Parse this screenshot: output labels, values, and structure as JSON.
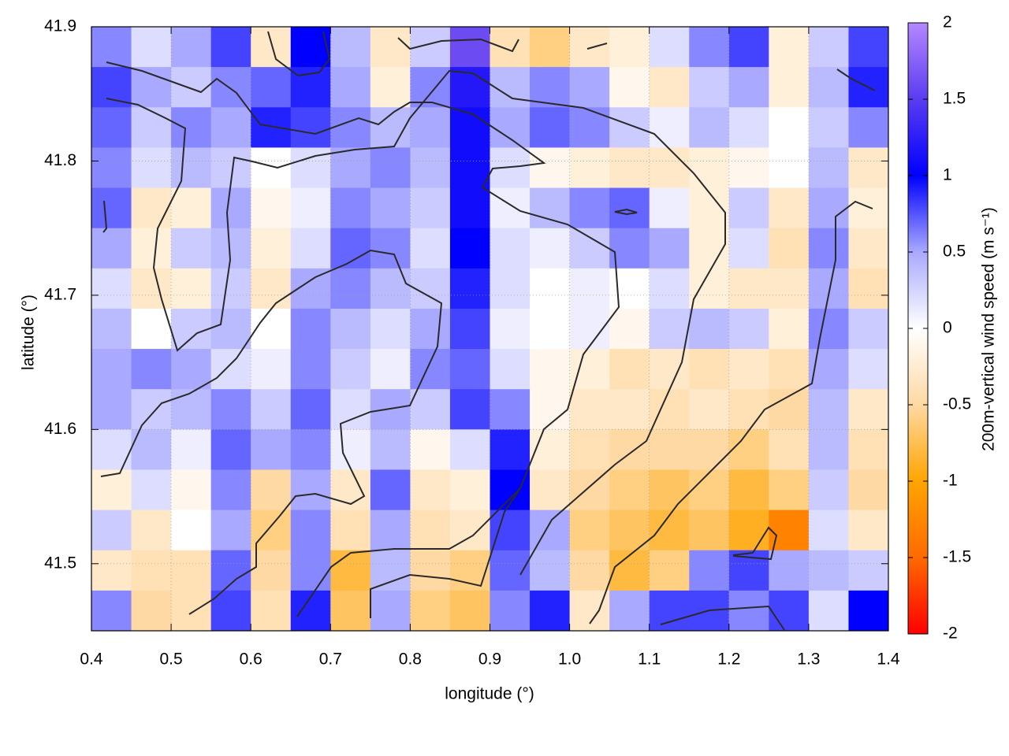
{
  "chart_data": {
    "type": "heatmap",
    "xlabel": "longitude (°)",
    "ylabel": "latitude (°)",
    "colorbar_label": "200m-vertical wind speed (m s⁻¹)",
    "xlim": [
      0.4,
      1.4
    ],
    "ylim": [
      41.45,
      41.9
    ],
    "zlim": [
      -2,
      2
    ],
    "xticks": [
      0.4,
      0.5,
      0.6,
      0.7,
      0.8,
      0.9,
      {
        "value": 1,
        "label": "1.0"
      },
      1.1,
      1.2,
      1.3,
      1.4
    ],
    "yticks": [
      41.5,
      41.6,
      41.7,
      41.8,
      41.9
    ],
    "zticks": [
      2,
      1.5,
      1,
      0.5,
      0,
      -0.5,
      -1,
      -1.5,
      -2
    ],
    "grid": true,
    "colormap": [
      "#ff0000",
      "#ff6a00",
      "#ffa500",
      "#ffd9a3",
      "#ffffff",
      "#a9a9ff",
      "#0000ff",
      "#5a3cf0",
      "#b488ff"
    ],
    "x": [
      0.425,
      0.475,
      0.525,
      0.575,
      0.625,
      0.675,
      0.725,
      0.775,
      0.825,
      0.875,
      0.925,
      0.975,
      1.025,
      1.075,
      1.125,
      1.175,
      1.225,
      1.275,
      1.325,
      1.375
    ],
    "y": [
      41.885,
      41.855,
      41.825,
      41.795,
      41.765,
      41.735,
      41.705,
      41.675,
      41.645,
      41.615,
      41.585,
      41.555,
      41.525,
      41.495,
      41.465
    ],
    "z": [
      [
        0.6,
        0.2,
        0.5,
        0.8,
        -0.3,
        1.0,
        0.4,
        -0.3,
        0.3,
        1.6,
        -0.4,
        -0.6,
        -0.3,
        -0.2,
        0.2,
        0.6,
        0.8,
        -0.2,
        0.3,
        0.8
      ],
      [
        0.8,
        0.5,
        0.3,
        0.6,
        0.7,
        0.9,
        0.5,
        -0.2,
        0.6,
        1.2,
        0.4,
        0.6,
        0.5,
        -0.1,
        -0.3,
        0.3,
        0.5,
        -0.2,
        0.4,
        0.9
      ],
      [
        0.7,
        0.3,
        0.6,
        0.5,
        0.9,
        0.8,
        0.6,
        0.4,
        0.5,
        1.1,
        0.5,
        0.7,
        0.6,
        0.3,
        0.1,
        0.4,
        0.2,
        0.0,
        0.3,
        0.6
      ],
      [
        0.6,
        0.2,
        0.4,
        0.3,
        0.0,
        0.2,
        0.5,
        0.6,
        0.4,
        1.1,
        0.2,
        -0.1,
        -0.2,
        -0.3,
        -0.3,
        -0.2,
        -0.1,
        0.0,
        0.4,
        -0.3
      ],
      [
        0.7,
        -0.3,
        -0.2,
        0.5,
        -0.1,
        0.1,
        0.6,
        0.5,
        0.3,
        1.1,
        0.1,
        0.4,
        0.6,
        0.7,
        0.1,
        -0.2,
        0.3,
        -0.3,
        0.5,
        -0.2
      ],
      [
        0.5,
        -0.2,
        0.3,
        0.4,
        -0.2,
        0.2,
        0.7,
        0.6,
        0.2,
        1.0,
        0.2,
        0.1,
        0.3,
        0.6,
        0.5,
        -0.2,
        0.2,
        -0.4,
        0.6,
        -0.3
      ],
      [
        0.2,
        -0.3,
        -0.2,
        0.3,
        -0.3,
        0.5,
        0.6,
        0.4,
        0.3,
        0.9,
        0.2,
        0.0,
        0.1,
        0.0,
        0.2,
        -0.2,
        -0.3,
        -0.3,
        0.5,
        -0.4
      ],
      [
        0.4,
        0.0,
        0.3,
        0.4,
        0.0,
        0.6,
        0.4,
        0.2,
        0.5,
        0.8,
        0.1,
        0.0,
        0.1,
        -0.1,
        0.3,
        0.4,
        0.3,
        -0.2,
        0.6,
        0.3
      ],
      [
        0.5,
        0.6,
        0.5,
        0.2,
        0.1,
        0.6,
        0.3,
        0.1,
        0.6,
        0.7,
        0.2,
        -0.1,
        -0.2,
        -0.4,
        -0.3,
        -0.4,
        -0.3,
        -0.4,
        0.5,
        0.2
      ],
      [
        0.5,
        0.3,
        0.4,
        0.6,
        0.3,
        0.7,
        0.2,
        0.5,
        0.3,
        0.8,
        0.6,
        -0.1,
        -0.3,
        -0.3,
        -0.4,
        -0.3,
        -0.4,
        -0.5,
        0.4,
        -0.3
      ],
      [
        0.2,
        0.4,
        0.1,
        0.7,
        0.5,
        0.6,
        0.1,
        0.4,
        -0.1,
        0.2,
        0.9,
        -0.2,
        -0.4,
        -0.5,
        -0.5,
        -0.5,
        -0.6,
        -0.4,
        0.4,
        -0.4
      ],
      [
        -0.2,
        0.2,
        -0.1,
        0.6,
        -0.5,
        0.5,
        -0.3,
        0.7,
        -0.3,
        -0.2,
        1.0,
        -0.3,
        -0.5,
        -0.6,
        -0.7,
        -0.6,
        -0.8,
        -0.6,
        0.3,
        -0.5
      ],
      [
        0.3,
        -0.3,
        0.0,
        0.5,
        -0.6,
        0.6,
        -0.4,
        0.5,
        -0.4,
        -0.3,
        0.8,
        0.5,
        -0.6,
        -0.7,
        -0.8,
        -0.7,
        -0.9,
        -1.3,
        0.2,
        -0.3
      ],
      [
        -0.3,
        -0.4,
        -0.4,
        0.7,
        -0.5,
        0.6,
        -0.8,
        0.4,
        -0.5,
        -0.6,
        0.7,
        0.4,
        -0.5,
        -0.8,
        -0.6,
        0.6,
        0.8,
        0.5,
        0.4,
        0.3
      ],
      [
        0.6,
        -0.5,
        -0.4,
        0.8,
        -0.4,
        0.9,
        -0.7,
        0.5,
        -0.6,
        -0.7,
        0.6,
        0.9,
        -0.3,
        0.5,
        0.8,
        0.8,
        0.6,
        0.8,
        0.2,
        1.0
      ]
    ]
  }
}
